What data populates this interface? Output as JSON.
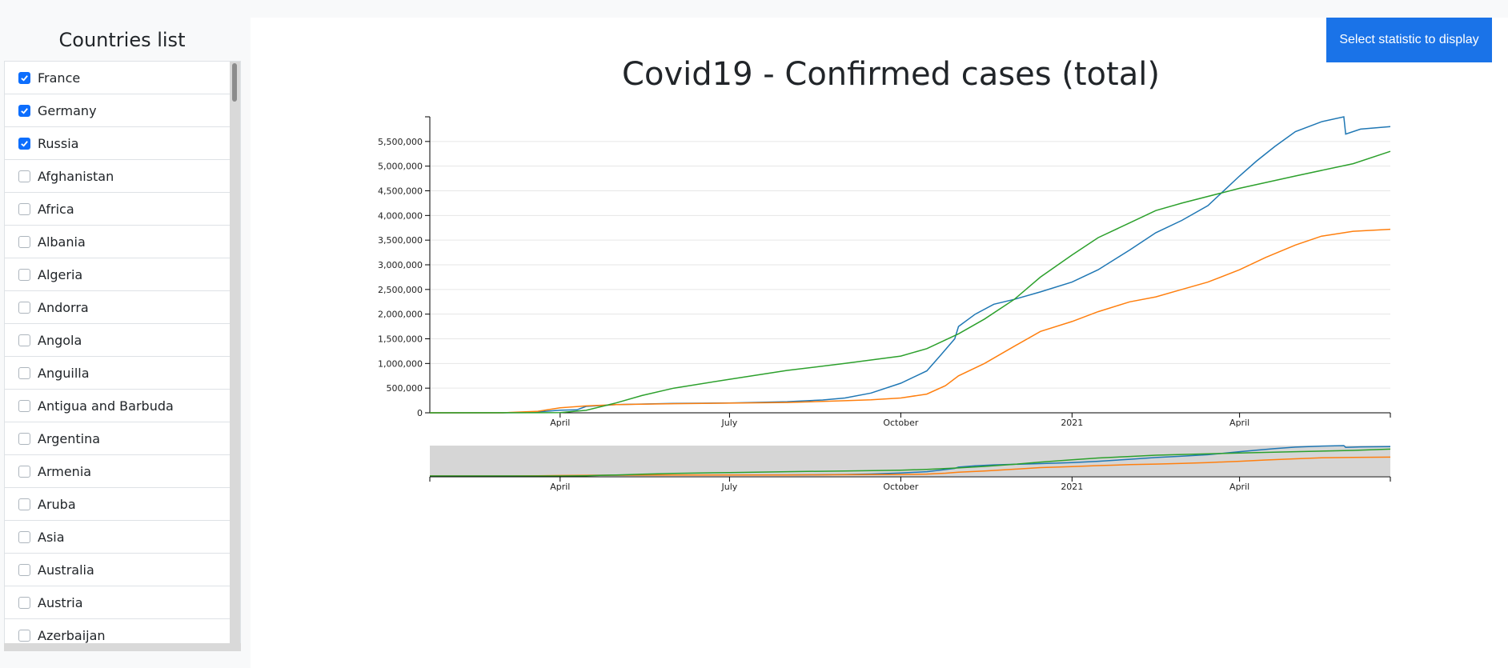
{
  "sidebar": {
    "title": "Countries list",
    "items": [
      {
        "label": "France",
        "checked": true
      },
      {
        "label": "Germany",
        "checked": true
      },
      {
        "label": "Russia",
        "checked": true
      },
      {
        "label": "Afghanistan",
        "checked": false
      },
      {
        "label": "Africa",
        "checked": false
      },
      {
        "label": "Albania",
        "checked": false
      },
      {
        "label": "Algeria",
        "checked": false
      },
      {
        "label": "Andorra",
        "checked": false
      },
      {
        "label": "Angola",
        "checked": false
      },
      {
        "label": "Anguilla",
        "checked": false
      },
      {
        "label": "Antigua and Barbuda",
        "checked": false
      },
      {
        "label": "Argentina",
        "checked": false
      },
      {
        "label": "Armenia",
        "checked": false
      },
      {
        "label": "Aruba",
        "checked": false
      },
      {
        "label": "Asia",
        "checked": false
      },
      {
        "label": "Australia",
        "checked": false
      },
      {
        "label": "Austria",
        "checked": false
      },
      {
        "label": "Azerbaijan",
        "checked": false
      }
    ]
  },
  "toolbar": {
    "stat_button_label": "Select statistic to display"
  },
  "chart_data": {
    "type": "line",
    "title": "Covid19 - Confirmed cases (total)",
    "xlabel": "",
    "ylabel": "",
    "ylim": [
      0,
      6000000
    ],
    "xlim": [
      "2020-01-22",
      "2021-06-21"
    ],
    "y_ticks": [
      "0",
      "500,000",
      "1,000,000",
      "1,500,000",
      "2,000,000",
      "2,500,000",
      "3,000,000",
      "3,500,000",
      "4,000,000",
      "4,500,000",
      "5,000,000",
      "5,500,000"
    ],
    "y_tick_values": [
      0,
      500000,
      1000000,
      1500000,
      2000000,
      2500000,
      3000000,
      3500000,
      4000000,
      4500000,
      5000000,
      5500000
    ],
    "x_ticks": [
      {
        "label": "April",
        "date": "2020-04-01"
      },
      {
        "label": "July",
        "date": "2020-07-01"
      },
      {
        "label": "October",
        "date": "2020-10-01"
      },
      {
        "label": "2021",
        "date": "2021-01-01"
      },
      {
        "label": "April",
        "date": "2021-04-01"
      }
    ],
    "grid": true,
    "series": [
      {
        "color": "#1f77b4",
        "points": [
          [
            "2020-01-22",
            0
          ],
          [
            "2020-03-01",
            100
          ],
          [
            "2020-03-15",
            5000
          ],
          [
            "2020-04-01",
            52000
          ],
          [
            "2020-04-10",
            60000
          ],
          [
            "2020-04-15",
            130000
          ],
          [
            "2020-05-01",
            165000
          ],
          [
            "2020-06-01",
            190000
          ],
          [
            "2020-07-01",
            200000
          ],
          [
            "2020-08-01",
            225000
          ],
          [
            "2020-08-20",
            260000
          ],
          [
            "2020-09-01",
            300000
          ],
          [
            "2020-09-15",
            400000
          ],
          [
            "2020-10-01",
            600000
          ],
          [
            "2020-10-15",
            850000
          ],
          [
            "2020-10-22",
            1150000
          ],
          [
            "2020-10-30",
            1500000
          ],
          [
            "2020-11-01",
            1750000
          ],
          [
            "2020-11-10",
            2000000
          ],
          [
            "2020-11-20",
            2200000
          ],
          [
            "2020-12-01",
            2300000
          ],
          [
            "2020-12-15",
            2450000
          ],
          [
            "2021-01-01",
            2650000
          ],
          [
            "2021-01-15",
            2900000
          ],
          [
            "2021-02-01",
            3300000
          ],
          [
            "2021-02-15",
            3650000
          ],
          [
            "2021-03-01",
            3900000
          ],
          [
            "2021-03-15",
            4200000
          ],
          [
            "2021-04-01",
            4800000
          ],
          [
            "2021-04-10",
            5100000
          ],
          [
            "2021-04-20",
            5400000
          ],
          [
            "2021-05-01",
            5700000
          ],
          [
            "2021-05-15",
            5900000
          ],
          [
            "2021-05-27",
            6000000
          ],
          [
            "2021-05-28",
            5650000
          ],
          [
            "2021-06-05",
            5750000
          ],
          [
            "2021-06-21",
            5800000
          ]
        ]
      },
      {
        "color": "#ff7f0e",
        "points": [
          [
            "2020-01-22",
            0
          ],
          [
            "2020-03-01",
            200
          ],
          [
            "2020-03-20",
            30000
          ],
          [
            "2020-04-01",
            100000
          ],
          [
            "2020-04-15",
            140000
          ],
          [
            "2020-05-01",
            165000
          ],
          [
            "2020-06-01",
            185000
          ],
          [
            "2020-07-01",
            197000
          ],
          [
            "2020-08-01",
            210000
          ],
          [
            "2020-09-01",
            245000
          ],
          [
            "2020-09-15",
            265000
          ],
          [
            "2020-10-01",
            300000
          ],
          [
            "2020-10-15",
            380000
          ],
          [
            "2020-10-25",
            550000
          ],
          [
            "2020-11-01",
            750000
          ],
          [
            "2020-11-15",
            1000000
          ],
          [
            "2020-12-01",
            1350000
          ],
          [
            "2020-12-15",
            1650000
          ],
          [
            "2021-01-01",
            1850000
          ],
          [
            "2021-01-15",
            2050000
          ],
          [
            "2021-02-01",
            2250000
          ],
          [
            "2021-02-15",
            2350000
          ],
          [
            "2021-03-01",
            2500000
          ],
          [
            "2021-03-15",
            2650000
          ],
          [
            "2021-04-01",
            2900000
          ],
          [
            "2021-04-15",
            3150000
          ],
          [
            "2021-05-01",
            3400000
          ],
          [
            "2021-05-15",
            3580000
          ],
          [
            "2021-06-01",
            3680000
          ],
          [
            "2021-06-21",
            3720000
          ]
        ]
      },
      {
        "color": "#2ca02c",
        "points": [
          [
            "2020-01-22",
            0
          ],
          [
            "2020-03-20",
            1000
          ],
          [
            "2020-04-01",
            3000
          ],
          [
            "2020-04-15",
            50000
          ],
          [
            "2020-05-01",
            200000
          ],
          [
            "2020-05-15",
            350000
          ],
          [
            "2020-06-01",
            500000
          ],
          [
            "2020-07-01",
            680000
          ],
          [
            "2020-08-01",
            860000
          ],
          [
            "2020-09-01",
            1000000
          ],
          [
            "2020-10-01",
            1150000
          ],
          [
            "2020-10-15",
            1300000
          ],
          [
            "2020-11-01",
            1600000
          ],
          [
            "2020-11-15",
            1900000
          ],
          [
            "2020-12-01",
            2300000
          ],
          [
            "2020-12-15",
            2750000
          ],
          [
            "2021-01-01",
            3200000
          ],
          [
            "2021-01-15",
            3550000
          ],
          [
            "2021-02-01",
            3850000
          ],
          [
            "2021-02-15",
            4100000
          ],
          [
            "2021-03-01",
            4250000
          ],
          [
            "2021-04-01",
            4550000
          ],
          [
            "2021-05-01",
            4800000
          ],
          [
            "2021-06-01",
            5050000
          ],
          [
            "2021-06-21",
            5300000
          ]
        ]
      }
    ]
  }
}
